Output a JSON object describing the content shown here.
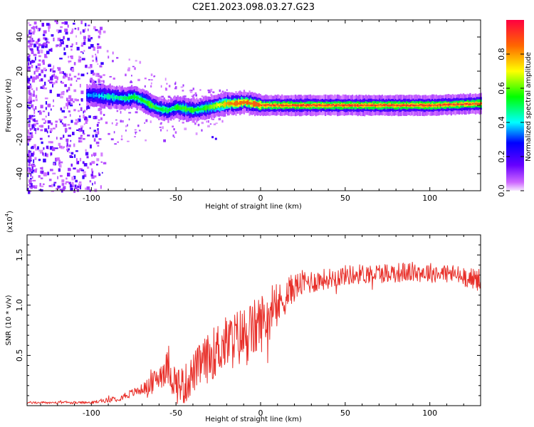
{
  "title": "C2E1.2023.098.03.27.G23",
  "colors": {
    "snr_line": "#e8302a",
    "spec_low": "#cc66ff",
    "spec_high": "#ff0000",
    "axis": "#000000"
  },
  "chart_data": [
    {
      "type": "heatmap",
      "name": "spectrogram",
      "xlabel": "Height of straight line (km)",
      "ylabel": "Frequency (Hz)",
      "xlim": [
        -138,
        130
      ],
      "ylim": [
        -50,
        50
      ],
      "xticks": [
        -100,
        -50,
        0,
        50,
        100
      ],
      "yticks": [
        -40,
        -20,
        0,
        20,
        40
      ],
      "xtick_labels": [
        "-100",
        "-50",
        "0",
        "50",
        "100"
      ],
      "ytick_labels": [
        "-40",
        "-20",
        "0",
        "20",
        "40"
      ],
      "colorbar": {
        "label": "Normalized spectral amplitude",
        "range": [
          0,
          1
        ],
        "ticks": [
          0.0,
          0.2,
          0.4,
          0.6,
          0.8
        ],
        "tick_labels": [
          "0.0",
          "0.2",
          "0.4",
          "0.6",
          "0.8"
        ]
      },
      "ridge": {
        "x": [
          -100,
          -90,
          -80,
          -75,
          -70,
          -65,
          -60,
          -55,
          -50,
          -45,
          -40,
          -35,
          -30,
          -25,
          -20,
          -15,
          -10,
          -5,
          0,
          10,
          50,
          100,
          130
        ],
        "freq": [
          6,
          5,
          4,
          5,
          3,
          0,
          -2,
          -3,
          -1,
          -2,
          -3,
          -2,
          -1,
          0,
          1,
          1,
          2,
          1,
          0,
          0,
          0,
          0,
          1
        ],
        "amplitude": [
          0.35,
          0.45,
          0.5,
          0.55,
          0.55,
          0.6,
          0.55,
          0.5,
          0.55,
          0.6,
          0.55,
          0.55,
          0.6,
          0.7,
          0.8,
          0.85,
          0.85,
          0.85,
          0.9,
          0.95,
          0.95,
          0.95,
          0.95
        ]
      }
    },
    {
      "type": "line",
      "name": "snr",
      "xlabel": "Height of straight line (km)",
      "ylabel": "SNR (10 * v/v)",
      "scale_label": "(x10",
      "scale_exponent": "4",
      "scale_close": ")",
      "xlim": [
        -138,
        130
      ],
      "ylim": [
        0,
        1.7
      ],
      "xticks": [
        -100,
        -50,
        0,
        50,
        100
      ],
      "yticks": [
        0.5,
        1.0,
        1.5
      ],
      "xtick_labels": [
        "-100",
        "-50",
        "0",
        "50",
        "100"
      ],
      "ytick_labels": [
        "0.5",
        "1.0",
        "1.5"
      ],
      "trend": {
        "x": [
          -138,
          -100,
          -85,
          -75,
          -65,
          -60,
          -55,
          -50,
          -45,
          -40,
          -35,
          -30,
          -25,
          -20,
          -15,
          -10,
          -5,
          0,
          5,
          10,
          15,
          20,
          25,
          35,
          50,
          70,
          90,
          110,
          130
        ],
        "y": [
          0.03,
          0.03,
          0.07,
          0.13,
          0.2,
          0.3,
          0.38,
          0.22,
          0.2,
          0.32,
          0.42,
          0.48,
          0.58,
          0.62,
          0.66,
          0.7,
          0.74,
          0.82,
          0.9,
          0.98,
          1.1,
          1.18,
          1.22,
          1.25,
          1.3,
          1.32,
          1.33,
          1.32,
          1.25
        ]
      },
      "noise_amplitude": {
        "x": [
          -138,
          -100,
          -70,
          -60,
          -50,
          -40,
          -30,
          -20,
          -10,
          0,
          10,
          20,
          40,
          60,
          100,
          130
        ],
        "y": [
          0.012,
          0.012,
          0.05,
          0.14,
          0.2,
          0.2,
          0.25,
          0.28,
          0.3,
          0.3,
          0.22,
          0.14,
          0.1,
          0.1,
          0.1,
          0.1
        ]
      }
    }
  ]
}
